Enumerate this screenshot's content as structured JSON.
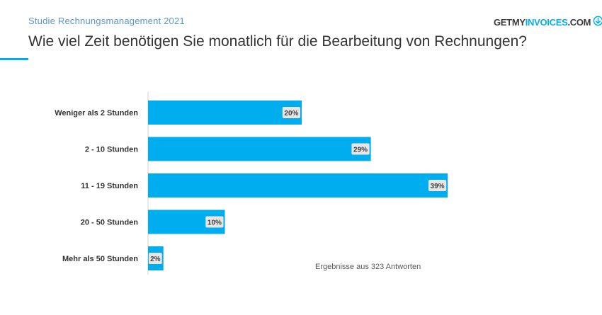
{
  "header": {
    "subtitle": "Studie Rechnungsmanagement  2021",
    "title": "Wie viel Zeit benötigen Sie monatlich für die Bearbeitung von Rechnungen?",
    "logo_dark": "GETMY",
    "logo_light": "INVOICES",
    "logo_suffix": ".COM",
    "logo_icon": "download-circle-icon"
  },
  "colors": {
    "bar": "#00aeef",
    "accent": "#00aeef",
    "label_box": "#e6e6e6"
  },
  "chart_data": {
    "type": "bar",
    "orientation": "horizontal",
    "title": "Wie viel Zeit benötigen Sie monatlich für die Bearbeitung von Rechnungen?",
    "categories": [
      "Weniger als 2 Stunden",
      "2 - 10 Stunden",
      "11 - 19 Stunden",
      "20 - 50 Stunden",
      "Mehr als 50 Stunden"
    ],
    "values": [
      20,
      29,
      39,
      10,
      2
    ],
    "value_labels": [
      "20%",
      "29%",
      "39%",
      "10%",
      "2%"
    ],
    "unit": "%",
    "xlim": [
      0,
      40
    ],
    "grid": false,
    "annotation": "Ergebnisse aus 323 Antworten"
  }
}
